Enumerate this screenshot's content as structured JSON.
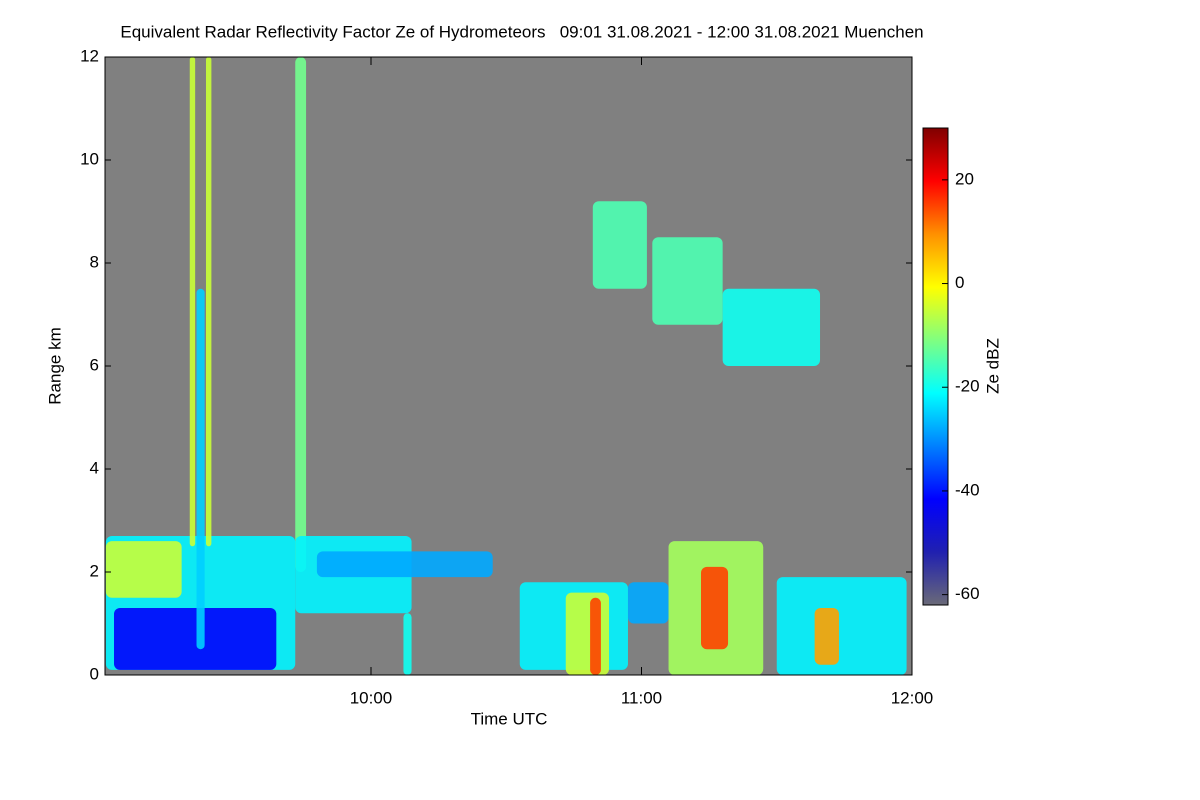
{
  "chart_data": {
    "type": "heatmap",
    "title": "Equivalent Radar Reflectivity Factor Ze of Hydrometeors   09:01 31.08.2021 - 12:00 31.08.2021 Muenchen",
    "x_label": "Time UTC",
    "y_label": "Range km",
    "colorbar_label": "Ze dBZ",
    "xlim": [
      9.0167,
      12.0
    ],
    "xticks": [
      {
        "value": 10,
        "label": "10:00"
      },
      {
        "value": 11,
        "label": "11:00"
      },
      {
        "value": 12,
        "label": "12:00"
      }
    ],
    "ylim": [
      0,
      12
    ],
    "yticks": [
      0,
      2,
      4,
      6,
      8,
      10,
      12
    ],
    "clim": [
      -62,
      30
    ],
    "cticks": [
      20,
      0,
      -20,
      -40,
      -60
    ],
    "background": "#808080",
    "colormap": [
      "#6a6a78",
      "#2020b0",
      "#0000ff",
      "#0080ff",
      "#00ffff",
      "#80ff80",
      "#ffff00",
      "#ff9000",
      "#ff0000",
      "#800000"
    ],
    "cells": [
      {
        "x": [
          9.02,
          9.72
        ],
        "y": [
          0.1,
          2.7
        ],
        "z": -22
      },
      {
        "x": [
          9.02,
          9.3
        ],
        "y": [
          1.5,
          2.6
        ],
        "z": -5
      },
      {
        "x": [
          9.05,
          9.65
        ],
        "y": [
          0.1,
          1.3
        ],
        "z": -42
      },
      {
        "x": [
          9.33,
          9.35
        ],
        "y": [
          2.5,
          12
        ],
        "z": -5
      },
      {
        "x": [
          9.39,
          9.41
        ],
        "y": [
          2.5,
          12
        ],
        "z": -5
      },
      {
        "x": [
          9.355,
          9.385
        ],
        "y": [
          0.5,
          7.5
        ],
        "z": -25
      },
      {
        "x": [
          9.72,
          9.76
        ],
        "y": [
          2.0,
          12
        ],
        "z": -12
      },
      {
        "x": [
          9.72,
          10.15
        ],
        "y": [
          1.2,
          2.7
        ],
        "z": -22
      },
      {
        "x": [
          9.8,
          10.45
        ],
        "y": [
          1.9,
          2.4
        ],
        "z": -28
      },
      {
        "x": [
          10.12,
          10.15
        ],
        "y": [
          0.0,
          1.2
        ],
        "z": -20
      },
      {
        "x": [
          10.55,
          10.95
        ],
        "y": [
          0.1,
          1.8
        ],
        "z": -22
      },
      {
        "x": [
          10.72,
          10.88
        ],
        "y": [
          0.0,
          1.6
        ],
        "z": -5
      },
      {
        "x": [
          10.81,
          10.85
        ],
        "y": [
          0.0,
          1.5
        ],
        "z": 15
      },
      {
        "x": [
          10.95,
          11.1
        ],
        "y": [
          1.0,
          1.8
        ],
        "z": -28
      },
      {
        "x": [
          11.1,
          11.45
        ],
        "y": [
          0.0,
          2.6
        ],
        "z": -8
      },
      {
        "x": [
          11.22,
          11.32
        ],
        "y": [
          0.5,
          2.1
        ],
        "z": 15
      },
      {
        "x": [
          11.5,
          11.98
        ],
        "y": [
          0.0,
          1.9
        ],
        "z": -22
      },
      {
        "x": [
          11.64,
          11.73
        ],
        "y": [
          0.2,
          1.3
        ],
        "z": 8
      },
      {
        "x": [
          10.82,
          11.02
        ],
        "y": [
          7.5,
          9.2
        ],
        "z": -15
      },
      {
        "x": [
          11.04,
          11.3
        ],
        "y": [
          6.8,
          8.5
        ],
        "z": -15
      },
      {
        "x": [
          11.3,
          11.66
        ],
        "y": [
          6.0,
          7.5
        ],
        "z": -20
      }
    ]
  }
}
